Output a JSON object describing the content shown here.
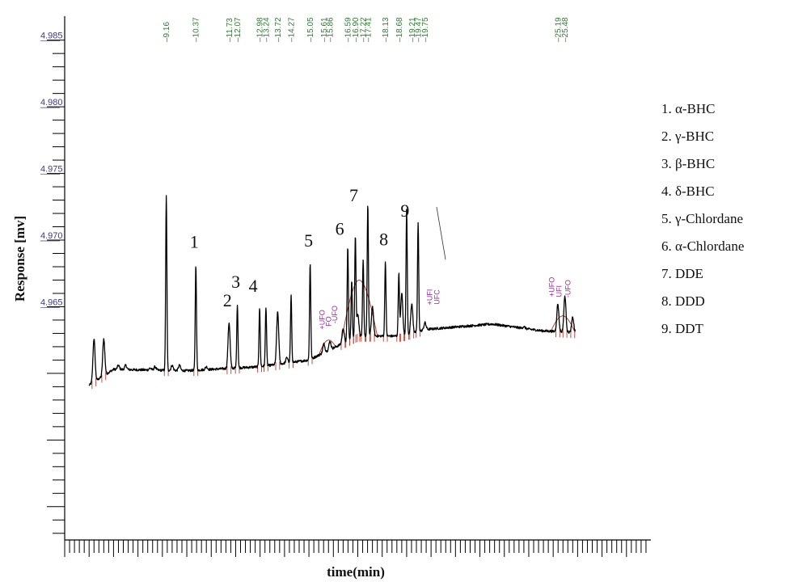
{
  "chart_data": {
    "type": "line",
    "title": "",
    "xlabel": "time(min)",
    "ylabel": "Response [mv]",
    "xlim": [
      5.0,
      29.0
    ],
    "ylim": [
      4.9475,
      4.9868
    ],
    "grid": false,
    "y_ticks": [
      {
        "value": 4.985,
        "label": "4.985"
      },
      {
        "value": 4.98,
        "label": "4.980"
      },
      {
        "value": 4.975,
        "label": "4.975"
      },
      {
        "value": 4.97,
        "label": "4.970"
      },
      {
        "value": 4.965,
        "label": "4.965"
      }
    ],
    "baseline": [
      [
        5.0,
        4.9592
      ],
      [
        5.9,
        4.959
      ],
      [
        7.0,
        4.9603
      ],
      [
        10.0,
        4.9602
      ],
      [
        13.0,
        4.9605
      ],
      [
        15.0,
        4.961
      ],
      [
        17.0,
        4.9628
      ],
      [
        18.8,
        4.9628
      ],
      [
        19.8,
        4.9633
      ],
      [
        22.5,
        4.9637
      ],
      [
        24.5,
        4.9632
      ],
      [
        26.5,
        4.963
      ],
      [
        29.0,
        4.9628
      ]
    ],
    "series": [
      {
        "values": [
          [
            6.2,
            4.9626
          ],
          [
            6.6,
            4.9626
          ],
          [
            7.2,
            4.9606
          ],
          [
            7.5,
            4.9606
          ],
          [
            8.5,
            4.9604
          ],
          [
            8.7,
            4.9605
          ],
          [
            9.16,
            4.9733
          ],
          [
            9.4,
            4.9606
          ],
          [
            9.7,
            4.9606
          ],
          [
            10.37,
            4.9682
          ],
          [
            10.8,
            4.9605
          ],
          [
            11.73,
            4.9638
          ],
          [
            12.07,
            4.9652
          ],
          [
            12.98,
            4.9649
          ],
          [
            13.24,
            4.965
          ],
          [
            13.72,
            4.9646
          ],
          [
            14.1,
            4.9612
          ],
          [
            14.27,
            4.9658
          ],
          [
            15.05,
            4.9683
          ],
          [
            15.61,
            4.9622
          ],
          [
            15.86,
            4.9624
          ],
          [
            16.4,
            4.9634
          ],
          [
            16.59,
            4.9695
          ],
          [
            16.75,
            4.967
          ],
          [
            16.9,
            4.9703
          ],
          [
            17.0,
            4.9645
          ],
          [
            17.22,
            4.9685
          ],
          [
            17.41,
            4.9727
          ],
          [
            17.6,
            4.965
          ],
          [
            18.13,
            4.9684
          ],
          [
            18.68,
            4.9675
          ],
          [
            18.8,
            4.966
          ],
          [
            19.0,
            4.9723
          ],
          [
            19.21,
            4.9652
          ],
          [
            19.47,
            4.9713
          ],
          [
            19.75,
            4.9638
          ],
          [
            23.8,
            4.9635
          ],
          [
            25.19,
            4.9652
          ],
          [
            25.48,
            4.9658
          ],
          [
            25.8,
            4.9642
          ]
        ]
      }
    ],
    "retention_times": [
      "9.16",
      "10.37",
      "11.73",
      "12.07",
      "12.98",
      "13.24",
      "13.72",
      "14.27",
      "15.05",
      "15.61",
      "15.86",
      "16.59",
      "16.90",
      "17.22",
      "17.41",
      "18.13",
      "18.68",
      "19.21",
      "19.47",
      "19.75",
      "25.19",
      "25.48"
    ],
    "peak_labels": [
      {
        "label": "1",
        "x": 10.37
      },
      {
        "label": "2",
        "x": 11.73
      },
      {
        "label": "3",
        "x": 12.07
      },
      {
        "label": "4",
        "x": 12.98
      },
      {
        "label": "5",
        "x": 15.05
      },
      {
        "label": "6",
        "x": 16.59
      },
      {
        "label": "7",
        "x": 16.9
      },
      {
        "label": "8",
        "x": 18.13
      },
      {
        "label": "9",
        "x": 19.0
      }
    ],
    "integration_events": [
      {
        "label": "+UFO",
        "x": 15.55
      },
      {
        "label": "FO",
        "x": 15.8
      },
      {
        "label": "-UFO",
        "x": 16.05
      },
      {
        "label": "+UFI",
        "x": 19.95
      },
      {
        "label": "UFC",
        "x": 20.25
      },
      {
        "label": "+UFO",
        "x": 24.95
      },
      {
        "label": "UFI",
        "x": 25.25
      },
      {
        "label": "-UFO",
        "x": 25.6
      }
    ],
    "legend": {
      "placement": "right",
      "items": [
        "1.  α-BHC",
        "2.  γ-BHC",
        "3.  β-BHC",
        "4.  δ-BHC",
        "5.  γ-Chlordane",
        "6.  α-Chlordane",
        "7.  DDE",
        "8.  DDD",
        "9.  DDT"
      ]
    },
    "colors": {
      "trace": "#000000",
      "axis": "#000000",
      "rt_label": "#2e7d32",
      "y_tick_label": "#3a3a8a",
      "baseline_marker": "#c0392b",
      "event_label": "#9a2aa0"
    }
  }
}
